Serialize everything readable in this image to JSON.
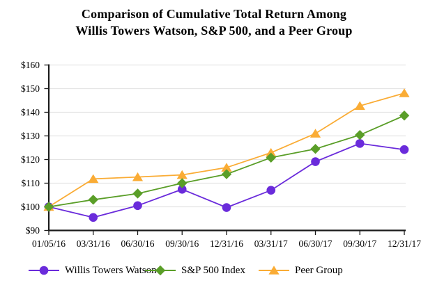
{
  "title": {
    "line1": "Comparison of Cumulative Total Return Among",
    "line2": "Willis Towers Watson, S&P 500, and a Peer Group"
  },
  "chart_data": {
    "type": "line",
    "title": "Comparison of Cumulative Total Return Among Willis Towers Watson, S&P 500, and a Peer Group",
    "x_labels": [
      "01/05/16",
      "03/31/16",
      "06/30/16",
      "09/30/16",
      "12/31/16",
      "03/31/17",
      "06/30/17",
      "09/30/17",
      "12/31/17"
    ],
    "y_tick_labels": [
      "$90",
      "$100",
      "$110",
      "$120",
      "$130",
      "$140",
      "$150",
      "$160"
    ],
    "ylim": [
      90,
      160
    ],
    "y_tick_step": 10,
    "grid": true,
    "legend_position": "bottom",
    "series": [
      {
        "name": "Willis Towers Watson",
        "marker": "circle",
        "color": "#6A2BDB",
        "values": [
          100.0,
          95.5,
          100.5,
          107.4,
          99.7,
          107.0,
          119.1,
          126.8,
          124.2
        ]
      },
      {
        "name": "S&P 500 Index",
        "marker": "diamond",
        "color": "#5A9E28",
        "values": [
          100.0,
          103.0,
          105.6,
          110.0,
          113.8,
          120.8,
          124.5,
          130.4,
          138.6
        ]
      },
      {
        "name": "Peer Group",
        "marker": "triangle",
        "color": "#FAAC35",
        "values": [
          100.0,
          111.8,
          112.6,
          113.5,
          116.6,
          122.9,
          131.0,
          142.7,
          148.1
        ]
      }
    ]
  },
  "colors": {
    "axis": "#1a1a1a",
    "grid": "#e4e4e4",
    "text": "#000000",
    "background": "#ffffff"
  }
}
